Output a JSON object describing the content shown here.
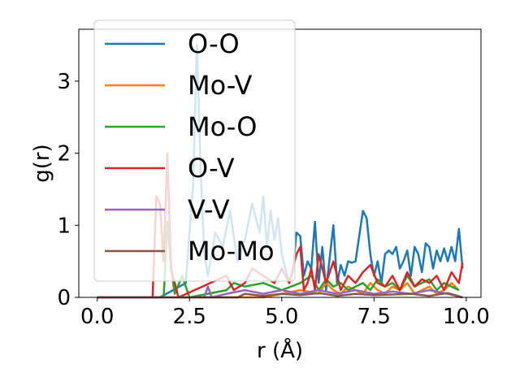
{
  "chart_data": {
    "type": "line",
    "title": "",
    "xlabel": "r (Å)",
    "ylabel": "g(r)",
    "xlim": [
      -0.5,
      10.4
    ],
    "ylim": [
      0,
      3.72
    ],
    "xticks": [
      0.0,
      2.5,
      5.0,
      7.5,
      10.0
    ],
    "xtick_labels": [
      "0.0",
      "2.5",
      "5.0",
      "7.5",
      "10.0"
    ],
    "yticks": [
      0,
      1,
      2,
      3
    ],
    "ytick_labels": [
      "0",
      "1",
      "2",
      "3"
    ],
    "grid": false,
    "legend_placement": "upper-left",
    "series": [
      {
        "name": "O-O",
        "color": "#1f77b4",
        "x": [
          0,
          1.6,
          1.7,
          2.4,
          2.6,
          2.7,
          2.8,
          2.9,
          3.0,
          3.2,
          3.4,
          3.6,
          3.8,
          4.0,
          4.2,
          4.4,
          4.5,
          4.6,
          4.7,
          4.8,
          4.9,
          5.0,
          5.1,
          5.2,
          5.3,
          5.4,
          5.5,
          5.6,
          5.7,
          5.8,
          5.9,
          6.0,
          6.1,
          6.2,
          6.3,
          6.4,
          6.5,
          6.6,
          6.7,
          6.8,
          6.9,
          7.0,
          7.1,
          7.2,
          7.3,
          7.4,
          7.5,
          7.6,
          7.7,
          7.8,
          7.9,
          8.0,
          8.1,
          8.2,
          8.3,
          8.4,
          8.5,
          8.6,
          8.7,
          8.8,
          8.9,
          9.0,
          9.1,
          9.2,
          9.3,
          9.4,
          9.5,
          9.6,
          9.7,
          9.8,
          9.9
        ],
        "y": [
          0,
          0,
          0,
          0.2,
          1.6,
          3.5,
          1.8,
          0.6,
          0.3,
          0.9,
          0.7,
          1.2,
          0.5,
          0.8,
          1.3,
          0.9,
          1.4,
          0.7,
          1.2,
          0.8,
          1.1,
          0.6,
          0.4,
          0.2,
          0.35,
          0.9,
          0.85,
          0.3,
          0.5,
          0.4,
          1.05,
          0.2,
          0.7,
          0.1,
          0.55,
          1.0,
          0.2,
          0.45,
          0.3,
          0.5,
          0.48,
          0.5,
          0.85,
          1.2,
          1.1,
          0.6,
          0.3,
          0.5,
          0.2,
          0.6,
          0.65,
          0.6,
          0.7,
          0.4,
          0.5,
          0.65,
          0.3,
          0.7,
          0.6,
          0.35,
          0.75,
          0.7,
          0.4,
          0.65,
          0.5,
          0.68,
          0.5,
          0.7,
          0.5,
          0.95,
          0.4
        ]
      },
      {
        "name": "Mo-V",
        "color": "#ff7f0e",
        "x": [
          0,
          4.5,
          5.0,
          5.5,
          6.0,
          6.2,
          6.4,
          6.6,
          6.8,
          7.0,
          7.2,
          7.4,
          7.6,
          7.8,
          8.0,
          8.2,
          8.4,
          8.6,
          8.8,
          9.0,
          9.2,
          9.4,
          9.6,
          9.8
        ],
        "y": [
          0,
          0,
          0.05,
          0.1,
          0.05,
          0.2,
          0.1,
          0.05,
          0.15,
          0.1,
          0.05,
          0.2,
          0.1,
          0.05,
          0.15,
          0.1,
          0.2,
          0.05,
          0.1,
          0.15,
          0.05,
          0.1,
          0.2,
          0.1
        ]
      },
      {
        "name": "Mo-O",
        "color": "#2ca02c",
        "x": [
          0,
          1.8,
          1.9,
          2.0,
          2.1,
          2.3,
          2.5,
          3.5,
          3.7,
          4.0,
          4.5,
          5.0,
          5.5,
          5.8,
          6.0,
          6.2,
          6.4,
          6.6,
          6.8,
          7.0,
          7.2,
          7.4,
          7.6,
          7.8,
          8.0,
          8.2,
          8.4,
          8.6,
          8.8,
          9.0,
          9.2,
          9.4,
          9.6,
          9.8
        ],
        "y": [
          0,
          0,
          1.05,
          0.4,
          0.05,
          0.3,
          0,
          0.1,
          0.2,
          0.15,
          0.2,
          0.1,
          0.2,
          0.3,
          0.1,
          0.25,
          0.15,
          0.2,
          0.1,
          0.15,
          0.2,
          0.1,
          0.25,
          0.15,
          0.2,
          0.1,
          0.3,
          0.15,
          0.2,
          0.25,
          0.1,
          0.2,
          0.15,
          0.1
        ]
      },
      {
        "name": "O-V",
        "color": "#d62728",
        "x": [
          0,
          1.5,
          1.6,
          1.7,
          1.8,
          1.9,
          2.0,
          2.2,
          3.5,
          3.7,
          4.0,
          4.2,
          4.5,
          4.8,
          5.0,
          5.2,
          5.4,
          5.5,
          5.6,
          5.7,
          5.8,
          5.9,
          6.0,
          6.2,
          6.4,
          6.6,
          6.8,
          7.0,
          7.2,
          7.4,
          7.6,
          7.8,
          8.0,
          8.2,
          8.4,
          8.6,
          8.8,
          9.0,
          9.2,
          9.4,
          9.6,
          9.8,
          9.9
        ],
        "y": [
          0,
          0,
          1.4,
          1.3,
          0.5,
          2.0,
          0.4,
          0,
          0.3,
          0.1,
          0.2,
          0.4,
          0.3,
          0.2,
          0.4,
          0.2,
          0.6,
          0.7,
          0.1,
          0.2,
          0.4,
          0.1,
          0.6,
          0.2,
          0.5,
          0.1,
          0.3,
          0.2,
          0.35,
          0.45,
          0.2,
          0.15,
          0.3,
          0.1,
          0.35,
          0.15,
          0.25,
          0.2,
          0.3,
          0.1,
          0.35,
          0.2,
          0.48
        ]
      },
      {
        "name": "V-V",
        "color": "#9467bd",
        "x": [
          0,
          2.9,
          3.0,
          3.1,
          3.5,
          4.0,
          4.5,
          5.0,
          5.5,
          6.0,
          6.5,
          7.0,
          7.5,
          8.0,
          8.5,
          9.0,
          9.5,
          9.9
        ],
        "y": [
          0,
          0,
          0.15,
          0,
          0.05,
          0.1,
          0.05,
          0.1,
          0.05,
          0.1,
          0.05,
          0.1,
          0.05,
          0.08,
          0.05,
          0.1,
          0.05,
          0
        ]
      },
      {
        "name": "Mo-Mo",
        "color": "#8c564b",
        "x": [
          0,
          3.8,
          4.0,
          4.5,
          5.0,
          5.5,
          6.0,
          6.5,
          7.0,
          7.5,
          8.0,
          8.5,
          9.0,
          9.5,
          9.9
        ],
        "y": [
          0,
          0,
          0.05,
          0.02,
          0.05,
          0.03,
          0.06,
          0.02,
          0.05,
          0.03,
          0.04,
          0.05,
          0.02,
          0.06,
          0
        ]
      }
    ]
  }
}
